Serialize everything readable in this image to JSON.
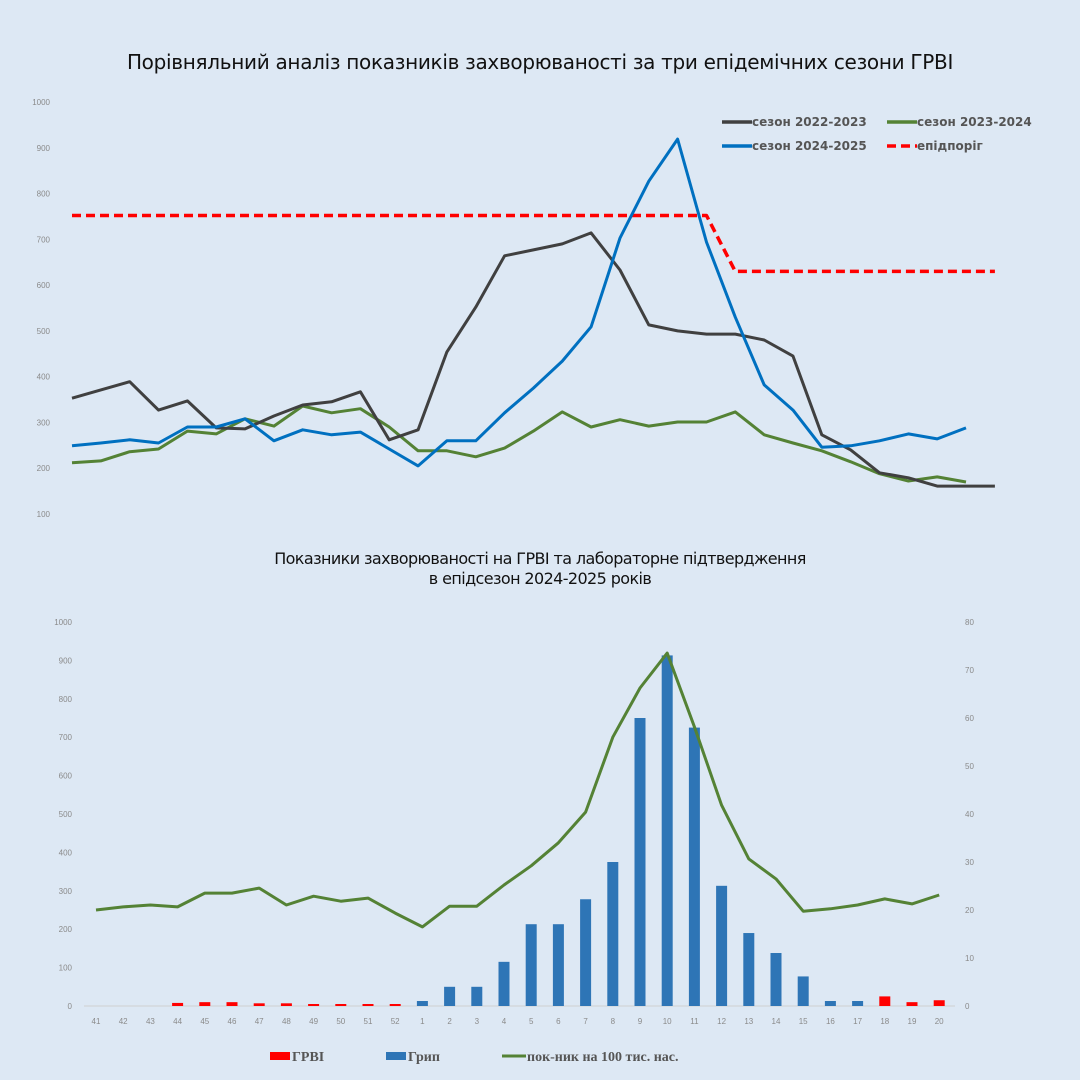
{
  "chart_data": [
    {
      "type": "line",
      "title": "Порівняльний аналіз показників захворюваності за три епідемічних сезони ГРВІ",
      "xlabel": "",
      "ylabel": "",
      "ylim": [
        100,
        1000
      ],
      "yticks": [
        "1000",
        "900",
        "800",
        "700",
        "600",
        "500",
        "400",
        "300",
        "200",
        "100"
      ],
      "ytick_values": [
        1000,
        900,
        800,
        700,
        600,
        500,
        400,
        300,
        200,
        100
      ],
      "grid": false,
      "legend_position": "top-right",
      "series": [
        {
          "name": "сезон 2022-2023",
          "color": "#404040",
          "dashed": false,
          "values": [
            353,
            371,
            389,
            327,
            347,
            288,
            286,
            314,
            338,
            345,
            367,
            262,
            284,
            454,
            552,
            664,
            677,
            690,
            714,
            633,
            513,
            500,
            493,
            493,
            480,
            445,
            273,
            240,
            190,
            179,
            161,
            161,
            161
          ]
        },
        {
          "name": "сезон 2023-2024",
          "color": "#548235",
          "dashed": false,
          "values": [
            212,
            216,
            236,
            242,
            281,
            275,
            308,
            292,
            336,
            321,
            330,
            290,
            238,
            238,
            225,
            244,
            281,
            323,
            290,
            306,
            292,
            301,
            301,
            323,
            273,
            255,
            238,
            214,
            188,
            172,
            181,
            170
          ]
        },
        {
          "name": "сезон 2024-2025",
          "color": "#0070c0",
          "dashed": false,
          "values": [
            249,
            255,
            262,
            255,
            290,
            290,
            308,
            260,
            284,
            273,
            279,
            242,
            205,
            260,
            260,
            321,
            375,
            434,
            509,
            703,
            827,
            919,
            694,
            530,
            382,
            327,
            246,
            249,
            260,
            275,
            264,
            288
          ]
        },
        {
          "name": "епідпоріг",
          "color": "#ff0000",
          "dashed": true,
          "values": [
            752,
            752,
            752,
            752,
            752,
            752,
            752,
            752,
            752,
            752,
            752,
            752,
            752,
            752,
            752,
            752,
            752,
            752,
            752,
            752,
            752,
            752,
            752,
            630,
            630,
            630,
            630,
            630,
            630,
            630,
            630,
            630,
            630
          ]
        }
      ]
    },
    {
      "type": "bar",
      "title": "Показники захворюваності на ГРВІ та лабораторне підтвердження в епідсезон 2024-2025 років",
      "title_lines": [
        "Показники захворюваності на ГРВІ та лабораторне підтвердження",
        "в епідсезон 2024-2025 років"
      ],
      "categories": [
        "41",
        "42",
        "43",
        "44",
        "45",
        "46",
        "47",
        "48",
        "49",
        "50",
        "51",
        "52",
        "1",
        "2",
        "3",
        "4",
        "5",
        "6",
        "7",
        "8",
        "9",
        "10",
        "11",
        "12",
        "13",
        "14",
        "15",
        "16",
        "17",
        "18",
        "19",
        "20"
      ],
      "ylim": [
        0,
        1000
      ],
      "y2lim": [
        0,
        80
      ],
      "yticks": [
        "1000",
        "900",
        "800",
        "700",
        "600",
        "500",
        "400",
        "300",
        "200",
        "100",
        "0"
      ],
      "ytick_values": [
        1000,
        900,
        800,
        700,
        600,
        500,
        400,
        300,
        200,
        100,
        0
      ],
      "y2ticks": [
        "80",
        "70",
        "60",
        "50",
        "40",
        "30",
        "20",
        "10",
        "0"
      ],
      "y2tick_values": [
        80,
        70,
        60,
        50,
        40,
        30,
        20,
        10,
        0
      ],
      "grid": false,
      "legend_position": "bottom",
      "series": [
        {
          "name": "ГРВІ",
          "kind": "bar",
          "color": "#ff0000",
          "values": [
            0,
            0,
            0,
            8,
            10,
            10,
            7,
            7,
            5,
            3,
            3,
            3,
            0,
            0,
            0,
            0,
            0,
            0,
            0,
            0,
            0,
            0,
            0,
            0,
            0,
            0,
            0,
            0,
            0,
            25,
            10,
            15
          ]
        },
        {
          "name": "Грип",
          "kind": "bar",
          "color": "#2e75b6",
          "values": [
            0,
            0,
            0,
            0,
            0,
            0,
            0,
            0,
            0,
            0,
            0,
            0,
            13,
            50,
            50,
            115,
            213,
            213,
            278,
            375,
            750,
            913,
            725,
            313,
            190,
            138,
            77,
            13,
            13,
            0,
            0,
            0
          ]
        },
        {
          "name": "пок-ник  на 100 тис. нас.",
          "kind": "line",
          "color": "#548235",
          "values": [
            250,
            258,
            263,
            258,
            294,
            294,
            307,
            263,
            286,
            273,
            281,
            242,
            206,
            260,
            260,
            315,
            365,
            425,
            505,
            700,
            828,
            919,
            727,
            523,
            383,
            331,
            247,
            253,
            263,
            279,
            266,
            289
          ]
        }
      ]
    }
  ]
}
